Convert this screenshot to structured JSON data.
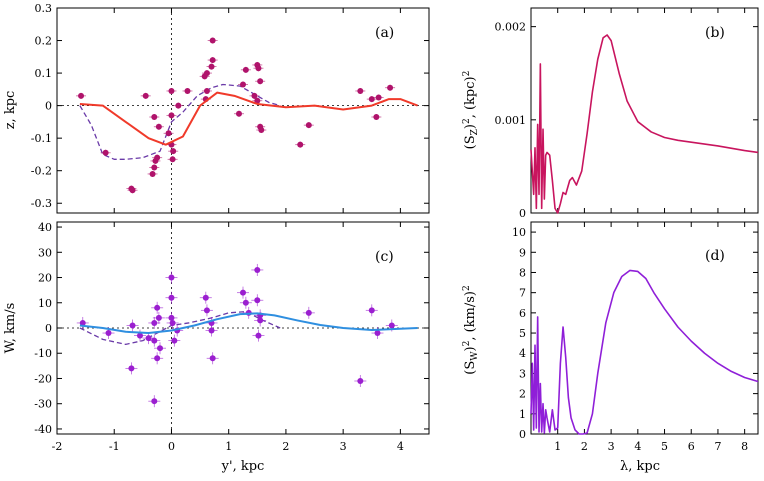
{
  "figure": {
    "colors": {
      "data_a": "#b0136b",
      "model_a": "#f03a2a",
      "dashed_a": "#6a3aa8",
      "spectrum_b": "#c8155e",
      "data_c": "#9b1fd0",
      "model_c": "#2f8fe0",
      "dashed_c": "#6a3aa8",
      "spectrum_d": "#8f1fd8",
      "axis": "#000000"
    }
  },
  "chart_data": [
    {
      "id": "a",
      "type": "scatter",
      "panel_label": "(a)",
      "ylabel": "z, kpc",
      "xlabel": "",
      "xlim": [
        -2,
        4.5
      ],
      "ylim": [
        -0.33,
        0.3
      ],
      "yticks": [
        -0.3,
        -0.2,
        -0.1,
        0,
        0.1,
        0.2,
        0.3
      ],
      "ytick_labels": [
        "-0.3",
        "-0.2",
        "-0.1",
        "0",
        "0.1",
        "0.2",
        "0.3"
      ],
      "xticks": [
        -2,
        -1,
        0,
        1,
        2,
        3,
        4
      ],
      "points": [
        {
          "x": -1.58,
          "y": 0.03
        },
        {
          "x": -1.15,
          "y": -0.145
        },
        {
          "x": -0.7,
          "y": -0.255
        },
        {
          "x": -0.68,
          "y": -0.26
        },
        {
          "x": -0.45,
          "y": 0.03
        },
        {
          "x": -0.33,
          "y": -0.21
        },
        {
          "x": -0.3,
          "y": -0.19
        },
        {
          "x": -0.28,
          "y": -0.17
        },
        {
          "x": -0.25,
          "y": -0.16
        },
        {
          "x": -0.22,
          "y": -0.065
        },
        {
          "x": -0.3,
          "y": -0.035
        },
        {
          "x": -0.05,
          "y": -0.085
        },
        {
          "x": 0.0,
          "y": 0.045
        },
        {
          "x": 0.0,
          "y": -0.03
        },
        {
          "x": 0.0,
          "y": -0.12
        },
        {
          "x": 0.03,
          "y": -0.14
        },
        {
          "x": 0.02,
          "y": -0.165
        },
        {
          "x": 0.12,
          "y": 0.0
        },
        {
          "x": 0.28,
          "y": 0.045
        },
        {
          "x": 0.58,
          "y": 0.09
        },
        {
          "x": 0.62,
          "y": 0.1
        },
        {
          "x": 0.7,
          "y": 0.12
        },
        {
          "x": 0.72,
          "y": 0.14
        },
        {
          "x": 0.72,
          "y": 0.2
        },
        {
          "x": 0.62,
          "y": 0.045
        },
        {
          "x": 0.6,
          "y": 0.02
        },
        {
          "x": 1.18,
          "y": -0.025
        },
        {
          "x": 1.25,
          "y": 0.065
        },
        {
          "x": 1.3,
          "y": 0.11
        },
        {
          "x": 1.5,
          "y": 0.125
        },
        {
          "x": 1.52,
          "y": 0.115
        },
        {
          "x": 1.55,
          "y": 0.075
        },
        {
          "x": 1.55,
          "y": -0.065
        },
        {
          "x": 1.57,
          "y": -0.075
        },
        {
          "x": 1.45,
          "y": 0.03
        },
        {
          "x": 1.5,
          "y": 0.015
        },
        {
          "x": 2.25,
          "y": -0.12
        },
        {
          "x": 2.4,
          "y": -0.06
        },
        {
          "x": 3.3,
          "y": 0.045
        },
        {
          "x": 3.5,
          "y": 0.02
        },
        {
          "x": 3.58,
          "y": -0.035
        },
        {
          "x": 3.62,
          "y": 0.025
        },
        {
          "x": 3.82,
          "y": 0.055
        }
      ],
      "model": {
        "x": [
          -1.6,
          -1.2,
          -0.8,
          -0.4,
          -0.1,
          0.2,
          0.5,
          0.8,
          1.1,
          1.5,
          2.0,
          2.5,
          3.0,
          3.5,
          3.8,
          4.0,
          4.3
        ],
        "y": [
          0.005,
          0.0,
          -0.05,
          -0.1,
          -0.12,
          -0.095,
          0.0,
          0.04,
          0.03,
          0.005,
          -0.005,
          0.0,
          -0.012,
          0.0,
          0.02,
          0.02,
          0.0
        ]
      },
      "dashed": {
        "x": [
          -1.6,
          -1.4,
          -1.2,
          -1.0,
          -0.8,
          -0.5,
          -0.2,
          0.0,
          0.2,
          0.45,
          0.7,
          0.9,
          1.2,
          1.5,
          1.7,
          1.9
        ],
        "y": [
          0.0,
          -0.06,
          -0.15,
          -0.165,
          -0.165,
          -0.16,
          -0.14,
          -0.05,
          -0.02,
          0.03,
          0.055,
          0.065,
          0.06,
          0.03,
          0.01,
          0.0
        ]
      }
    },
    {
      "id": "b",
      "type": "line",
      "panel_label": "(b)",
      "ylabel_parts": {
        "prefix": "(S",
        "sub": "Z",
        "mid": ")",
        "sup1": "2",
        "unit": ", (kpc)",
        "sup2": "2"
      },
      "xlim": [
        0,
        8.5
      ],
      "ylim": [
        0,
        0.0022
      ],
      "yticks": [
        0,
        0.001,
        0.002
      ],
      "ytick_labels": [
        "0",
        "0.001",
        "0.002"
      ],
      "series": {
        "x": [
          0.0,
          0.1,
          0.15,
          0.2,
          0.25,
          0.3,
          0.35,
          0.4,
          0.45,
          0.5,
          0.55,
          0.6,
          0.7,
          0.8,
          0.9,
          1.0,
          1.1,
          1.2,
          1.3,
          1.45,
          1.55,
          1.7,
          1.9,
          2.1,
          2.3,
          2.5,
          2.7,
          2.85,
          3.0,
          3.3,
          3.6,
          4.0,
          4.5,
          5.0,
          5.5,
          6.0,
          7.0,
          8.0,
          8.5
        ],
        "y": [
          0.00068,
          0.0002,
          0.0007,
          5e-05,
          0.00095,
          0.0002,
          0.0016,
          5e-05,
          0.0009,
          0.00015,
          0.00062,
          0.00065,
          0.00062,
          0.00035,
          5e-05,
          0.0,
          0.0001,
          0.00022,
          0.0002,
          0.00035,
          0.00038,
          0.0003,
          0.00045,
          0.00085,
          0.0013,
          0.00165,
          0.00188,
          0.00191,
          0.00185,
          0.0015,
          0.0012,
          0.00098,
          0.00087,
          0.00081,
          0.00078,
          0.00076,
          0.00072,
          0.00067,
          0.00065
        ]
      }
    },
    {
      "id": "c",
      "type": "scatter",
      "panel_label": "(c)",
      "ylabel": "W, km/s",
      "xlabel": "y', kpc",
      "xlim": [
        -2,
        4.5
      ],
      "ylim": [
        -42,
        42
      ],
      "yticks": [
        -40,
        -30,
        -20,
        -10,
        0,
        10,
        20,
        30,
        40
      ],
      "ytick_labels": [
        "-40",
        "-30",
        "-20",
        "-10",
        "0",
        "10",
        "20",
        "30",
        "40"
      ],
      "xticks": [
        -2,
        -1,
        0,
        1,
        2,
        3,
        4
      ],
      "xtick_labels": [
        "-2",
        "-1",
        "0",
        "1",
        "2",
        "3",
        "4"
      ],
      "points": [
        {
          "x": -1.55,
          "y": 2
        },
        {
          "x": -1.1,
          "y": -2
        },
        {
          "x": -0.68,
          "y": 1
        },
        {
          "x": -0.7,
          "y": -16
        },
        {
          "x": -0.55,
          "y": -3
        },
        {
          "x": -0.4,
          "y": -4
        },
        {
          "x": -0.3,
          "y": -29
        },
        {
          "x": -0.3,
          "y": 2
        },
        {
          "x": -0.25,
          "y": 8
        },
        {
          "x": -0.22,
          "y": 4
        },
        {
          "x": -0.25,
          "y": -12
        },
        {
          "x": -0.2,
          "y": -8
        },
        {
          "x": -0.3,
          "y": -5
        },
        {
          "x": 0.0,
          "y": 20
        },
        {
          "x": 0.0,
          "y": 12
        },
        {
          "x": 0.0,
          "y": 4
        },
        {
          "x": 0.02,
          "y": 2
        },
        {
          "x": 0.05,
          "y": -5
        },
        {
          "x": 0.1,
          "y": -1
        },
        {
          "x": 0.6,
          "y": 12
        },
        {
          "x": 0.62,
          "y": 7
        },
        {
          "x": 0.7,
          "y": 2
        },
        {
          "x": 0.72,
          "y": -12
        },
        {
          "x": 0.7,
          "y": -1
        },
        {
          "x": 1.25,
          "y": 14
        },
        {
          "x": 1.3,
          "y": 10
        },
        {
          "x": 1.35,
          "y": 6
        },
        {
          "x": 1.5,
          "y": 23
        },
        {
          "x": 1.5,
          "y": 11
        },
        {
          "x": 1.55,
          "y": 5
        },
        {
          "x": 1.55,
          "y": 3
        },
        {
          "x": 1.52,
          "y": -3
        },
        {
          "x": 2.4,
          "y": 6
        },
        {
          "x": 3.3,
          "y": -21
        },
        {
          "x": 3.5,
          "y": 7
        },
        {
          "x": 3.6,
          "y": -2
        },
        {
          "x": 3.85,
          "y": 1
        }
      ],
      "model": {
        "x": [
          -1.6,
          -1.2,
          -0.8,
          -0.4,
          0.0,
          0.4,
          0.8,
          1.2,
          1.5,
          1.8,
          2.2,
          2.6,
          3.0,
          3.5,
          4.0,
          4.3
        ],
        "y": [
          1,
          0,
          -1.5,
          -2,
          -1,
          1,
          3.5,
          5.5,
          5.8,
          5,
          3,
          1.2,
          0,
          -0.8,
          -0.3,
          0
        ]
      },
      "dashed": {
        "x": [
          -1.6,
          -1.2,
          -0.8,
          -0.5,
          -0.25,
          0.0,
          0.3,
          0.7,
          1.0,
          1.3,
          1.6,
          1.9
        ],
        "y": [
          0,
          -4.5,
          -6.5,
          -5,
          -2,
          1,
          2,
          4,
          6,
          6.5,
          3,
          0
        ]
      }
    },
    {
      "id": "d",
      "type": "line",
      "panel_label": "(d)",
      "ylabel_parts": {
        "prefix": "(S",
        "sub": "W",
        "mid": ")",
        "sup1": "2",
        "unit": ", (km/s)",
        "sup2": "2"
      },
      "xlabel": "λ, kpc",
      "xlim": [
        0,
        8.5
      ],
      "ylim": [
        0,
        10.5
      ],
      "yticks": [
        0,
        1,
        2,
        3,
        4,
        5,
        6,
        7,
        8,
        9,
        10
      ],
      "ytick_labels": [
        "0",
        "1",
        "2",
        "3",
        "4",
        "5",
        "6",
        "7",
        "8",
        "9",
        "10"
      ],
      "xticks": [
        1,
        2,
        3,
        4,
        5,
        6,
        7,
        8
      ],
      "xtick_labels": [
        "1",
        "2",
        "3",
        "4",
        "5",
        "6",
        "7",
        "8"
      ],
      "series": {
        "x": [
          0.0,
          0.05,
          0.1,
          0.15,
          0.2,
          0.25,
          0.3,
          0.35,
          0.4,
          0.45,
          0.5,
          0.55,
          0.6,
          0.7,
          0.8,
          0.9,
          1.0,
          1.1,
          1.2,
          1.3,
          1.4,
          1.5,
          1.65,
          1.8,
          1.95,
          2.1,
          2.3,
          2.5,
          2.8,
          3.1,
          3.4,
          3.7,
          4.0,
          4.3,
          4.6,
          5.0,
          5.5,
          6.0,
          6.5,
          7.0,
          7.5,
          8.0,
          8.5
        ],
        "y": [
          1.0,
          3.5,
          0.2,
          4.4,
          0.3,
          5.8,
          0.1,
          2.5,
          0.1,
          1.5,
          0.05,
          1.2,
          0.8,
          0.1,
          1.2,
          0.2,
          0.3,
          3.5,
          5.3,
          3.8,
          1.8,
          0.8,
          0.2,
          0.0,
          0.0,
          0.05,
          1.0,
          3.0,
          5.5,
          7.0,
          7.8,
          8.1,
          8.05,
          7.7,
          7.0,
          6.2,
          5.3,
          4.6,
          4.0,
          3.5,
          3.1,
          2.8,
          2.6
        ]
      }
    }
  ]
}
